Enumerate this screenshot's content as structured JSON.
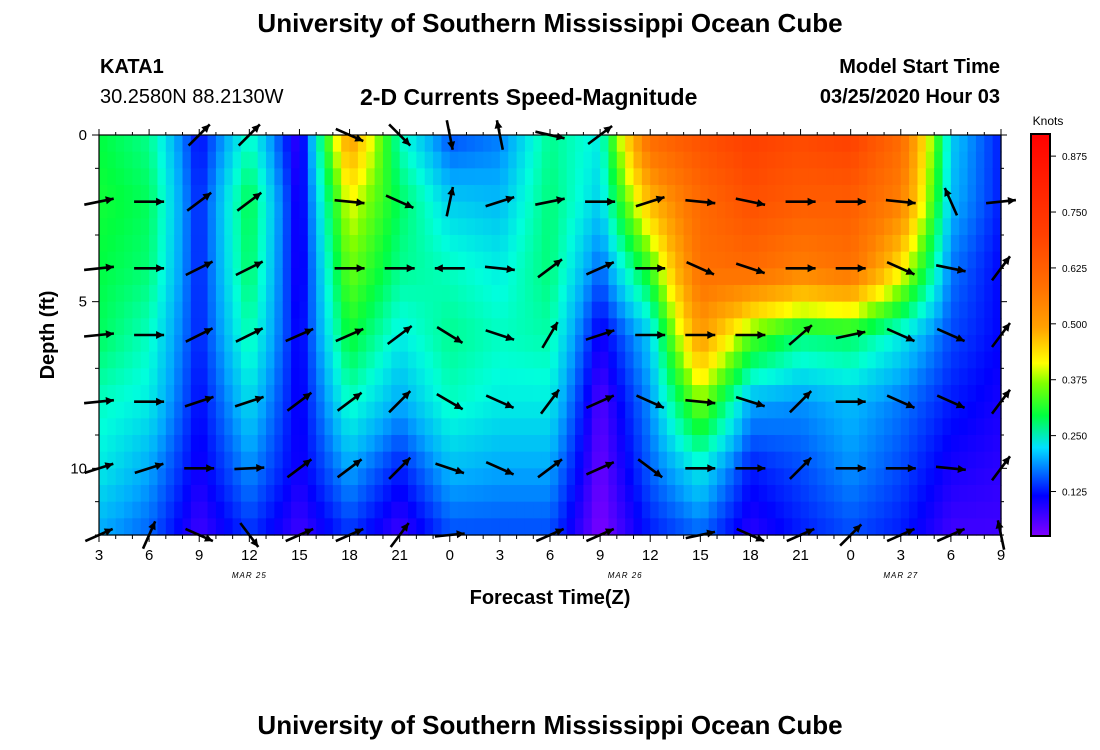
{
  "page": {
    "title": "University of Southern Mississippi Ocean Cube",
    "footer_title": "University of Southern Mississippi Ocean Cube",
    "station_id": "KATA1",
    "station_coords": "30.2580N 88.2130W",
    "model_start_label": "Model Start Time",
    "model_start_value": "03/25/2020 Hour 03"
  },
  "chart_data": {
    "type": "heatmap",
    "title": "2-D Currents Speed-Magnitude",
    "xlabel": "Forecast Time(Z)",
    "ylabel": "Depth (ft)",
    "x_hours_range": [
      0,
      54
    ],
    "ylim": [
      0,
      12
    ],
    "x_ticks": [
      {
        "h": 0,
        "label": "3"
      },
      {
        "h": 3,
        "label": "6"
      },
      {
        "h": 6,
        "label": "9"
      },
      {
        "h": 9,
        "label": "12"
      },
      {
        "h": 12,
        "label": "15"
      },
      {
        "h": 15,
        "label": "18"
      },
      {
        "h": 18,
        "label": "21"
      },
      {
        "h": 21,
        "label": "0"
      },
      {
        "h": 24,
        "label": "3"
      },
      {
        "h": 27,
        "label": "6"
      },
      {
        "h": 30,
        "label": "9"
      },
      {
        "h": 33,
        "label": "12"
      },
      {
        "h": 36,
        "label": "15"
      },
      {
        "h": 39,
        "label": "18"
      },
      {
        "h": 42,
        "label": "21"
      },
      {
        "h": 45,
        "label": "0"
      },
      {
        "h": 48,
        "label": "3"
      },
      {
        "h": 51,
        "label": "6"
      },
      {
        "h": 54,
        "label": "9"
      }
    ],
    "date_labels": [
      {
        "h": 9,
        "label": "MAR 25"
      },
      {
        "h": 31.5,
        "label": "MAR 26"
      },
      {
        "h": 48,
        "label": "MAR 27"
      }
    ],
    "y_ticks": [
      {
        "depth": 0,
        "label": "0"
      },
      {
        "depth": 5,
        "label": "5"
      },
      {
        "depth": 10,
        "label": "10"
      }
    ],
    "colorbar": {
      "label": "Knots",
      "min": 0.03,
      "max": 0.92,
      "ticks": [
        "0.125",
        "0.250",
        "0.375",
        "0.500",
        "0.625",
        "0.750",
        "0.875"
      ]
    },
    "columns": [
      {
        "h": 0,
        "s": [
          0.27,
          0.28,
          0.27,
          0.26,
          0.22,
          0.2,
          0.16
        ]
      },
      {
        "h": 3,
        "s": [
          0.24,
          0.26,
          0.25,
          0.22,
          0.2,
          0.16,
          0.13
        ]
      },
      {
        "h": 6,
        "s": [
          0.09,
          0.1,
          0.1,
          0.1,
          0.09,
          0.08,
          0.06
        ]
      },
      {
        "h": 9,
        "s": [
          0.22,
          0.27,
          0.26,
          0.23,
          0.19,
          0.15,
          0.11
        ]
      },
      {
        "h": 12,
        "s": [
          0.06,
          0.07,
          0.07,
          0.08,
          0.08,
          0.08,
          0.06
        ]
      },
      {
        "h": 15,
        "s": [
          0.5,
          0.38,
          0.33,
          0.28,
          0.22,
          0.16,
          0.11
        ]
      },
      {
        "h": 18,
        "s": [
          0.22,
          0.26,
          0.24,
          0.2,
          0.16,
          0.1,
          0.06
        ]
      },
      {
        "h": 21,
        "s": [
          0.12,
          0.18,
          0.22,
          0.24,
          0.22,
          0.17,
          0.12
        ]
      },
      {
        "h": 24,
        "s": [
          0.14,
          0.17,
          0.2,
          0.22,
          0.2,
          0.16,
          0.12
        ]
      },
      {
        "h": 27,
        "s": [
          0.24,
          0.25,
          0.25,
          0.23,
          0.2,
          0.16,
          0.12
        ]
      },
      {
        "h": 30,
        "s": [
          0.2,
          0.18,
          0.13,
          0.08,
          0.05,
          0.04,
          0.03
        ]
      },
      {
        "h": 33,
        "s": [
          0.62,
          0.45,
          0.3,
          0.18,
          0.15,
          0.13,
          0.1
        ]
      },
      {
        "h": 36,
        "s": [
          0.7,
          0.62,
          0.6,
          0.5,
          0.34,
          0.2,
          0.13
        ]
      },
      {
        "h": 39,
        "s": [
          0.75,
          0.7,
          0.62,
          0.32,
          0.16,
          0.1,
          0.07
        ]
      },
      {
        "h": 42,
        "s": [
          0.72,
          0.66,
          0.56,
          0.25,
          0.15,
          0.12,
          0.1
        ]
      },
      {
        "h": 45,
        "s": [
          0.75,
          0.66,
          0.6,
          0.26,
          0.17,
          0.15,
          0.12
        ]
      },
      {
        "h": 48,
        "s": [
          0.62,
          0.55,
          0.4,
          0.2,
          0.14,
          0.12,
          0.1
        ]
      },
      {
        "h": 51,
        "s": [
          0.18,
          0.17,
          0.14,
          0.12,
          0.1,
          0.08,
          0.06
        ]
      },
      {
        "h": 54,
        "s": [
          0.1,
          0.1,
          0.09,
          0.09,
          0.08,
          0.07,
          0.06
        ]
      }
    ],
    "vectors": [
      {
        "h": 6,
        "d": 0,
        "u": 0.8,
        "v": 0.8
      },
      {
        "h": 9,
        "d": 0,
        "u": 0.8,
        "v": 0.8
      },
      {
        "h": 15,
        "d": 0,
        "u": 0.9,
        "v": -0.4
      },
      {
        "h": 18,
        "d": 0,
        "u": 0.7,
        "v": -0.7
      },
      {
        "h": 21,
        "d": 0,
        "u": 0.2,
        "v": -1.0
      },
      {
        "h": 24,
        "d": 0,
        "u": -0.2,
        "v": 1.0
      },
      {
        "h": 27,
        "d": 0,
        "u": 0.9,
        "v": -0.2
      },
      {
        "h": 30,
        "d": 0,
        "u": 0.8,
        "v": 0.6
      },
      {
        "h": 0,
        "d": 2,
        "u": 0.98,
        "v": 0.2
      },
      {
        "h": 3,
        "d": 2,
        "u": 1.0,
        "v": 0.0
      },
      {
        "h": 6,
        "d": 2,
        "u": 0.8,
        "v": 0.6
      },
      {
        "h": 9,
        "d": 2,
        "u": 0.8,
        "v": 0.6
      },
      {
        "h": 15,
        "d": 2,
        "u": 1.0,
        "v": -0.1
      },
      {
        "h": 18,
        "d": 2,
        "u": 0.9,
        "v": -0.4
      },
      {
        "h": 21,
        "d": 2,
        "u": 0.2,
        "v": 0.95
      },
      {
        "h": 24,
        "d": 2,
        "u": 0.95,
        "v": 0.3
      },
      {
        "h": 27,
        "d": 2,
        "u": 0.98,
        "v": 0.2
      },
      {
        "h": 30,
        "d": 2,
        "u": 1.0,
        "v": 0.0
      },
      {
        "h": 33,
        "d": 2,
        "u": 0.95,
        "v": 0.3
      },
      {
        "h": 36,
        "d": 2,
        "u": 1.0,
        "v": -0.1
      },
      {
        "h": 39,
        "d": 2,
        "u": 0.95,
        "v": -0.2
      },
      {
        "h": 42,
        "d": 2,
        "u": 1.0,
        "v": 0.0
      },
      {
        "h": 45,
        "d": 2,
        "u": 1.0,
        "v": 0.0
      },
      {
        "h": 48,
        "d": 2,
        "u": 0.98,
        "v": -0.1
      },
      {
        "h": 51,
        "d": 2,
        "u": -0.4,
        "v": 0.9
      },
      {
        "h": 54,
        "d": 2,
        "u": 0.98,
        "v": 0.1
      },
      {
        "h": 0,
        "d": 4,
        "u": 0.98,
        "v": 0.1
      },
      {
        "h": 3,
        "d": 4,
        "u": 1.0,
        "v": 0.0
      },
      {
        "h": 6,
        "d": 4,
        "u": 0.8,
        "v": 0.4
      },
      {
        "h": 9,
        "d": 4,
        "u": 0.8,
        "v": 0.4
      },
      {
        "h": 15,
        "d": 4,
        "u": 1.0,
        "v": 0.0
      },
      {
        "h": 18,
        "d": 4,
        "u": 1.0,
        "v": 0.0
      },
      {
        "h": 21,
        "d": 4,
        "u": -1.0,
        "v": 0.0
      },
      {
        "h": 24,
        "d": 4,
        "u": 0.95,
        "v": -0.1
      },
      {
        "h": 27,
        "d": 4,
        "u": 0.8,
        "v": 0.6
      },
      {
        "h": 30,
        "d": 4,
        "u": 0.9,
        "v": 0.4
      },
      {
        "h": 33,
        "d": 4,
        "u": 1.0,
        "v": 0.0
      },
      {
        "h": 36,
        "d": 4,
        "u": 0.9,
        "v": -0.4
      },
      {
        "h": 39,
        "d": 4,
        "u": 0.9,
        "v": -0.3
      },
      {
        "h": 42,
        "d": 4,
        "u": 1.0,
        "v": 0.0
      },
      {
        "h": 45,
        "d": 4,
        "u": 1.0,
        "v": 0.0
      },
      {
        "h": 48,
        "d": 4,
        "u": 0.9,
        "v": -0.4
      },
      {
        "h": 51,
        "d": 4,
        "u": 0.98,
        "v": -0.2
      },
      {
        "h": 54,
        "d": 4,
        "u": 0.6,
        "v": 0.8
      },
      {
        "h": 0,
        "d": 6,
        "u": 1.0,
        "v": 0.1
      },
      {
        "h": 3,
        "d": 6,
        "u": 1.0,
        "v": 0.0
      },
      {
        "h": 6,
        "d": 6,
        "u": 0.8,
        "v": 0.4
      },
      {
        "h": 9,
        "d": 6,
        "u": 0.8,
        "v": 0.4
      },
      {
        "h": 12,
        "d": 6,
        "u": 0.9,
        "v": 0.4
      },
      {
        "h": 15,
        "d": 6,
        "u": 0.9,
        "v": 0.4
      },
      {
        "h": 18,
        "d": 6,
        "u": 0.8,
        "v": 0.6
      },
      {
        "h": 21,
        "d": 6,
        "u": 0.8,
        "v": -0.5
      },
      {
        "h": 24,
        "d": 6,
        "u": 0.9,
        "v": -0.3
      },
      {
        "h": 27,
        "d": 6,
        "u": 0.5,
        "v": 0.85
      },
      {
        "h": 30,
        "d": 6,
        "u": 0.9,
        "v": 0.3
      },
      {
        "h": 33,
        "d": 6,
        "u": 1.0,
        "v": 0.0
      },
      {
        "h": 36,
        "d": 6,
        "u": 1.0,
        "v": 0.0
      },
      {
        "h": 39,
        "d": 6,
        "u": 1.0,
        "v": 0.0
      },
      {
        "h": 42,
        "d": 6,
        "u": 0.7,
        "v": 0.6
      },
      {
        "h": 45,
        "d": 6,
        "u": 0.95,
        "v": 0.2
      },
      {
        "h": 48,
        "d": 6,
        "u": 0.9,
        "v": -0.4
      },
      {
        "h": 51,
        "d": 6,
        "u": 0.9,
        "v": -0.4
      },
      {
        "h": 54,
        "d": 6,
        "u": 0.6,
        "v": 0.8
      },
      {
        "h": 0,
        "d": 8,
        "u": 1.0,
        "v": 0.1
      },
      {
        "h": 3,
        "d": 8,
        "u": 1.0,
        "v": 0.0
      },
      {
        "h": 6,
        "d": 8,
        "u": 0.9,
        "v": 0.3
      },
      {
        "h": 9,
        "d": 8,
        "u": 0.9,
        "v": 0.3
      },
      {
        "h": 12,
        "d": 8,
        "u": 0.8,
        "v": 0.6
      },
      {
        "h": 15,
        "d": 8,
        "u": 0.8,
        "v": 0.6
      },
      {
        "h": 18,
        "d": 8,
        "u": 0.7,
        "v": 0.7
      },
      {
        "h": 21,
        "d": 8,
        "u": 0.85,
        "v": -0.5
      },
      {
        "h": 24,
        "d": 8,
        "u": 0.9,
        "v": -0.4
      },
      {
        "h": 27,
        "d": 8,
        "u": 0.6,
        "v": 0.8
      },
      {
        "h": 30,
        "d": 8,
        "u": 0.9,
        "v": 0.4
      },
      {
        "h": 33,
        "d": 8,
        "u": 0.9,
        "v": -0.4
      },
      {
        "h": 36,
        "d": 8,
        "u": 1.0,
        "v": -0.1
      },
      {
        "h": 39,
        "d": 8,
        "u": 0.95,
        "v": -0.3
      },
      {
        "h": 42,
        "d": 8,
        "u": 0.7,
        "v": 0.7
      },
      {
        "h": 45,
        "d": 8,
        "u": 1.0,
        "v": 0.0
      },
      {
        "h": 48,
        "d": 8,
        "u": 0.9,
        "v": -0.4
      },
      {
        "h": 51,
        "d": 8,
        "u": 0.9,
        "v": -0.4
      },
      {
        "h": 54,
        "d": 8,
        "u": 0.6,
        "v": 0.8
      },
      {
        "h": 0,
        "d": 10,
        "u": 0.95,
        "v": 0.3
      },
      {
        "h": 3,
        "d": 10,
        "u": 0.95,
        "v": 0.3
      },
      {
        "h": 6,
        "d": 10,
        "u": 1.0,
        "v": 0.0
      },
      {
        "h": 9,
        "d": 10,
        "u": 1.0,
        "v": 0.05
      },
      {
        "h": 12,
        "d": 10,
        "u": 0.8,
        "v": 0.6
      },
      {
        "h": 15,
        "d": 10,
        "u": 0.8,
        "v": 0.6
      },
      {
        "h": 18,
        "d": 10,
        "u": 0.7,
        "v": 0.7
      },
      {
        "h": 21,
        "d": 10,
        "u": 0.9,
        "v": -0.3
      },
      {
        "h": 24,
        "d": 10,
        "u": 0.9,
        "v": -0.4
      },
      {
        "h": 27,
        "d": 10,
        "u": 0.8,
        "v": 0.6
      },
      {
        "h": 30,
        "d": 10,
        "u": 0.9,
        "v": 0.4
      },
      {
        "h": 33,
        "d": 10,
        "u": 0.8,
        "v": -0.6
      },
      {
        "h": 36,
        "d": 10,
        "u": 1.0,
        "v": 0.0
      },
      {
        "h": 39,
        "d": 10,
        "u": 1.0,
        "v": 0.0
      },
      {
        "h": 42,
        "d": 10,
        "u": 0.7,
        "v": 0.7
      },
      {
        "h": 45,
        "d": 10,
        "u": 1.0,
        "v": 0.0
      },
      {
        "h": 48,
        "d": 10,
        "u": 1.0,
        "v": 0.0
      },
      {
        "h": 51,
        "d": 10,
        "u": 1.0,
        "v": -0.1
      },
      {
        "h": 54,
        "d": 10,
        "u": 0.6,
        "v": 0.8
      },
      {
        "h": 0,
        "d": 12,
        "u": 0.9,
        "v": 0.4
      },
      {
        "h": 3,
        "d": 12,
        "u": 0.4,
        "v": 0.9
      },
      {
        "h": 6,
        "d": 12,
        "u": 0.9,
        "v": -0.4
      },
      {
        "h": 9,
        "d": 12,
        "u": 0.6,
        "v": -0.8
      },
      {
        "h": 12,
        "d": 12,
        "u": 0.9,
        "v": 0.4
      },
      {
        "h": 15,
        "d": 12,
        "u": 0.9,
        "v": 0.4
      },
      {
        "h": 18,
        "d": 12,
        "u": 0.6,
        "v": 0.8
      },
      {
        "h": 21,
        "d": 12,
        "u": 0.98,
        "v": 0.1
      },
      {
        "h": 27,
        "d": 12,
        "u": 0.9,
        "v": 0.4
      },
      {
        "h": 30,
        "d": 12,
        "u": 0.9,
        "v": 0.4
      },
      {
        "h": 36,
        "d": 12,
        "u": 0.95,
        "v": 0.2
      },
      {
        "h": 39,
        "d": 12,
        "u": 0.9,
        "v": -0.4
      },
      {
        "h": 42,
        "d": 12,
        "u": 0.9,
        "v": 0.4
      },
      {
        "h": 45,
        "d": 12,
        "u": 0.7,
        "v": 0.7
      },
      {
        "h": 48,
        "d": 12,
        "u": 0.9,
        "v": 0.4
      },
      {
        "h": 51,
        "d": 12,
        "u": 0.9,
        "v": 0.4
      },
      {
        "h": 54,
        "d": 12,
        "u": -0.2,
        "v": 0.95
      }
    ]
  }
}
